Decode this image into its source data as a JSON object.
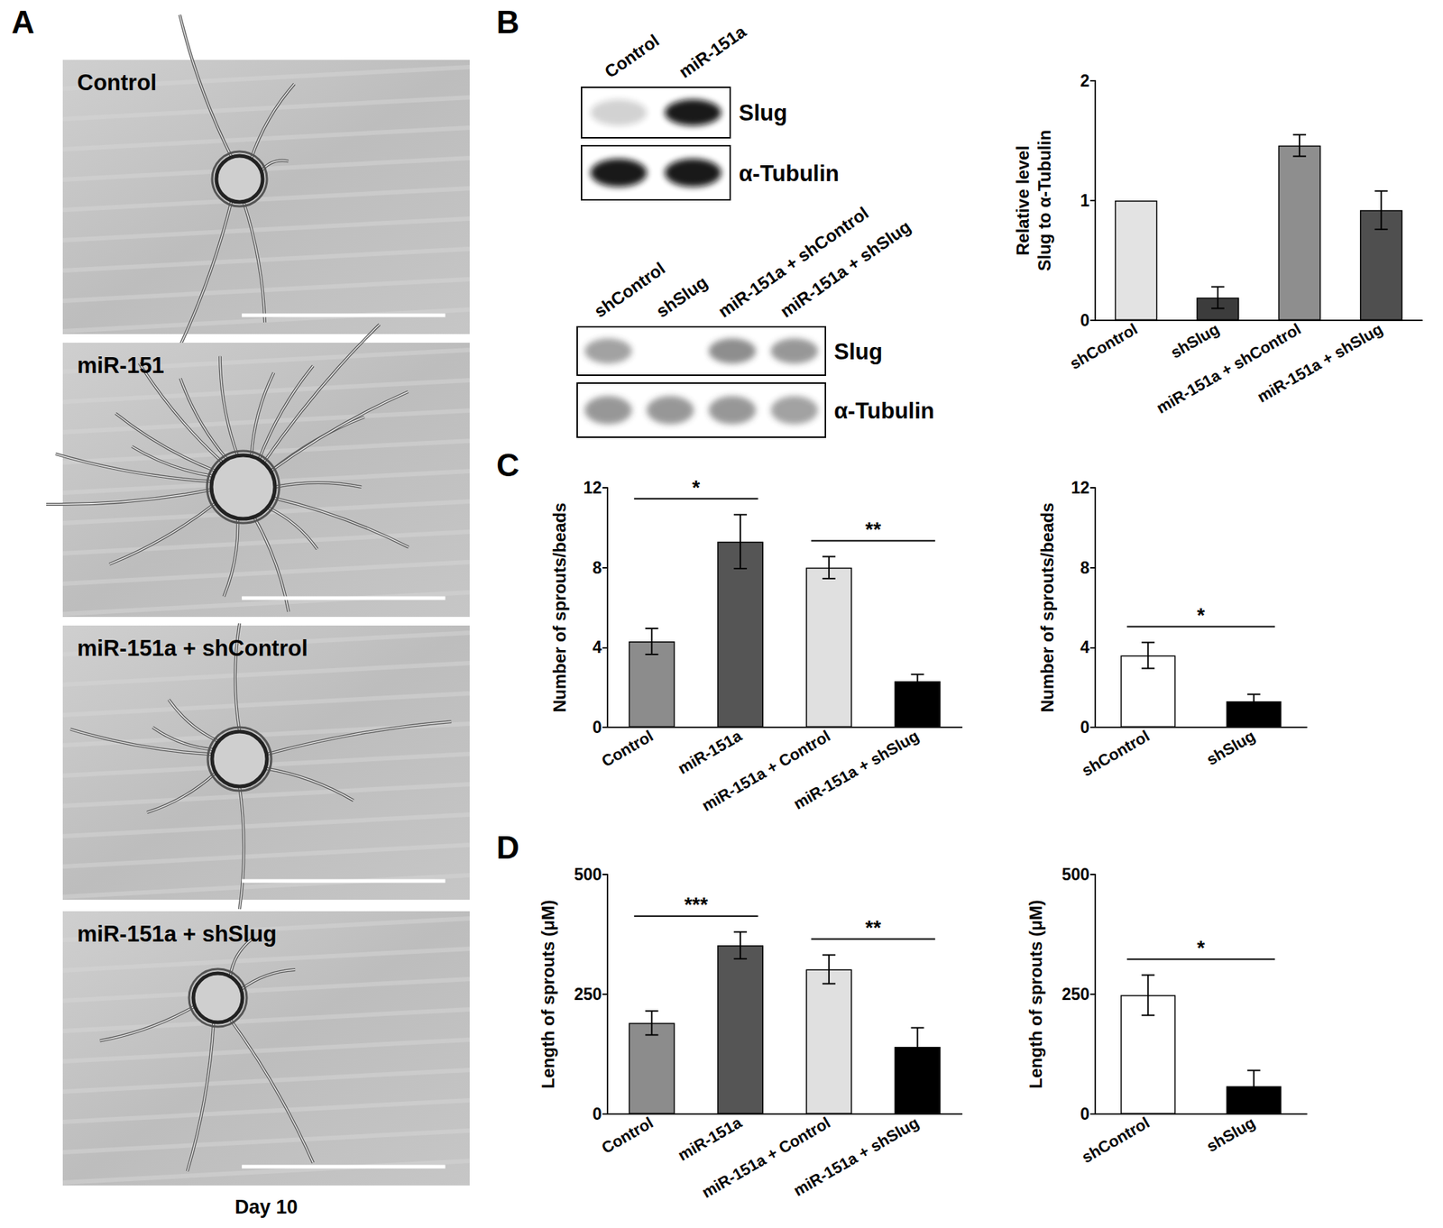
{
  "figure": {
    "panel_labels": [
      "A",
      "B",
      "C",
      "D"
    ],
    "micrographs": {
      "labels": [
        "Control",
        "miR-151",
        "miR-151a + shControl",
        "miR-151a + shSlug"
      ],
      "caption": "Day 10"
    },
    "blots": [
      {
        "lanes": [
          "Control",
          "miR-151a"
        ],
        "rows": [
          "Slug",
          "α-Tubulin"
        ]
      },
      {
        "lanes": [
          "shControl",
          "shSlug",
          "miR-151a + shControl",
          "miR-151a + shSlug"
        ],
        "rows": [
          "Slug",
          "α-Tubulin"
        ]
      }
    ]
  },
  "chart_data": [
    {
      "type": "bar",
      "ylabel": "Relative level\nSlug to α-Tubulin",
      "categories": [
        "shControl",
        "shSlug",
        "miR-151a + shControl",
        "miR-151a + shSlug"
      ],
      "values": [
        1.0,
        0.19,
        1.46,
        0.92
      ],
      "errors": [
        0,
        0.09,
        0.09,
        0.16
      ],
      "colors": [
        "#e3e3e3",
        "#3c3c3c",
        "#8e8e8e",
        "#4f4f4f"
      ],
      "ylim": [
        0,
        2
      ],
      "yticks": [
        0,
        1,
        2
      ],
      "grid": false,
      "annotations": []
    },
    {
      "type": "bar",
      "ylabel": "Number of sprouts/beads",
      "categories": [
        "Control",
        "miR-151a",
        "miR-151a + Control",
        "miR-151a + shSlug"
      ],
      "values": [
        4.3,
        9.3,
        8.0,
        2.3
      ],
      "errors": [
        0.65,
        1.35,
        0.55,
        0.35
      ],
      "colors": [
        "#8c8c8c",
        "#555555",
        "#e0e0e0",
        "#000000"
      ],
      "ylim": [
        0,
        12
      ],
      "yticks": [
        0,
        4,
        8,
        12
      ],
      "grid": false,
      "annotations": [
        {
          "text": "*",
          "between": [
            "Control",
            "miR-151a"
          ]
        },
        {
          "text": "**",
          "between": [
            "miR-151a + Control",
            "miR-151a + shSlug"
          ]
        }
      ]
    },
    {
      "type": "bar",
      "ylabel": "Number of sprouts/beads",
      "categories": [
        "shControl",
        "shSlug"
      ],
      "values": [
        3.6,
        1.3
      ],
      "errors": [
        0.65,
        0.35
      ],
      "colors": [
        "#ffffff",
        "#000000"
      ],
      "ylim": [
        0,
        12
      ],
      "yticks": [
        0,
        4,
        8,
        12
      ],
      "grid": false,
      "annotations": [
        {
          "text": "*",
          "between": [
            "shControl",
            "shSlug"
          ]
        }
      ]
    },
    {
      "type": "bar",
      "ylabel": "Length of sprouts (μM)",
      "categories": [
        "Control",
        "miR-151a",
        "miR-151a + Control",
        "miR-151a + shSlug"
      ],
      "values": [
        190,
        352,
        302,
        140
      ],
      "errors": [
        25,
        28,
        30,
        40
      ],
      "colors": [
        "#8c8c8c",
        "#555555",
        "#e0e0e0",
        "#000000"
      ],
      "ylim": [
        0,
        500
      ],
      "yticks": [
        0,
        250,
        500
      ],
      "grid": false,
      "annotations": [
        {
          "text": "***",
          "between": [
            "Control",
            "miR-151a"
          ]
        },
        {
          "text": "**",
          "between": [
            "miR-151a + Control",
            "miR-151a + shSlug"
          ]
        }
      ]
    },
    {
      "type": "bar",
      "ylabel": "Length of sprouts (μM)",
      "categories": [
        "shControl",
        "shSlug"
      ],
      "values": [
        248,
        58
      ],
      "errors": [
        42,
        33
      ],
      "colors": [
        "#ffffff",
        "#000000"
      ],
      "ylim": [
        0,
        500
      ],
      "yticks": [
        0,
        250,
        500
      ],
      "grid": false,
      "annotations": [
        {
          "text": "*",
          "between": [
            "shControl",
            "shSlug"
          ]
        }
      ]
    }
  ]
}
